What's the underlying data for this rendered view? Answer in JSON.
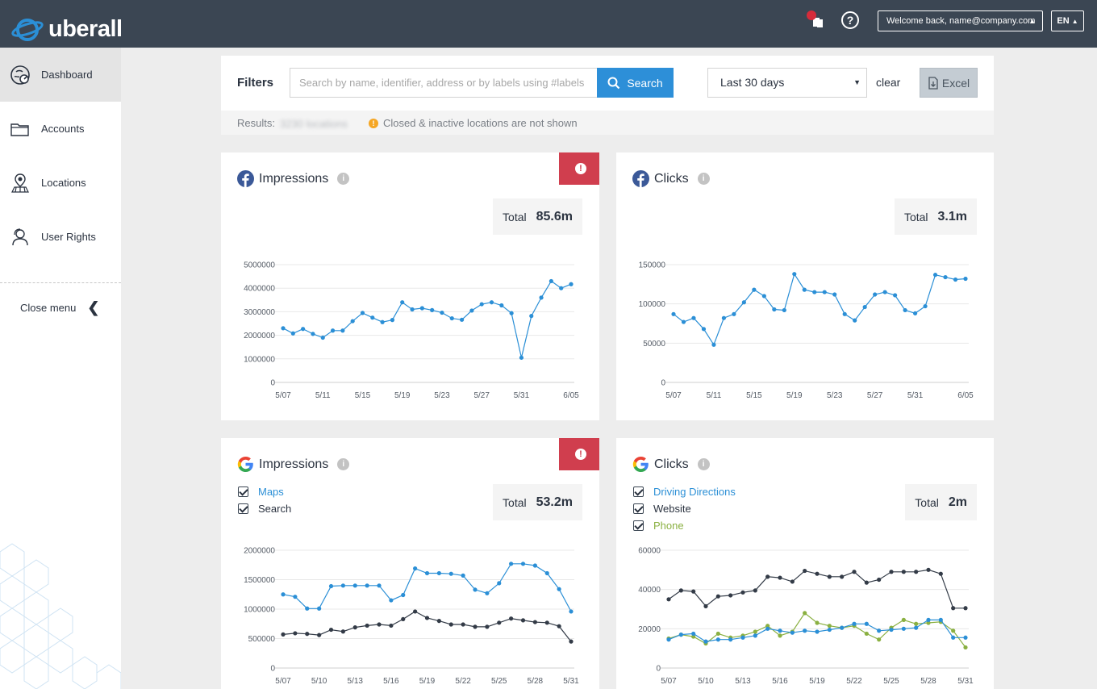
{
  "header": {
    "logo_text": "uberall",
    "help_label": "?",
    "welcome_text": "Welcome back, name@company.com",
    "language": "EN",
    "caret_glyph": "▲"
  },
  "sidebar": {
    "items": [
      {
        "label": "Dashboard",
        "icon": "dashboard-icon",
        "active": true
      },
      {
        "label": "Accounts",
        "icon": "folder-icon",
        "active": false
      },
      {
        "label": "Locations",
        "icon": "map-pin-icon",
        "active": false
      },
      {
        "label": "User Rights",
        "icon": "user-icon",
        "active": false
      }
    ],
    "close_menu": "Close menu",
    "close_glyph": "❮"
  },
  "filters": {
    "label": "Filters",
    "search_placeholder": "Search by name, identifier, address or by labels using #labels",
    "search_button": "Search",
    "date_range": "Last 30 days",
    "clear": "clear",
    "excel": "Excel",
    "results_label": "Results:",
    "results_count": "3230 locations",
    "results_note": "Closed & inactive locations are not shown",
    "warn_glyph": "!"
  },
  "colors": {
    "blue": "#2b8fd6",
    "dark": "#333b47",
    "green": "#8ab041",
    "alert": "#d03e4e",
    "topbar": "#3b4653"
  },
  "cards": {
    "fb_impressions": {
      "title": "Impressions",
      "source": "facebook",
      "total_label": "Total",
      "total_value": "85.6m",
      "alert": true,
      "alert_glyph": "!",
      "info_glyph": "i"
    },
    "fb_clicks": {
      "title": "Clicks",
      "source": "facebook",
      "total_label": "Total",
      "total_value": "3.1m",
      "alert": false,
      "info_glyph": "i"
    },
    "g_impressions": {
      "title": "Impressions",
      "source": "google",
      "legend": [
        {
          "label": "Maps",
          "color": "#2b8fd6"
        },
        {
          "label": "Search",
          "color": "#2b3340"
        }
      ],
      "total_label": "Total",
      "total_value": "53.2m",
      "alert": true,
      "alert_glyph": "!",
      "info_glyph": "i"
    },
    "g_clicks": {
      "title": "Clicks",
      "source": "google",
      "legend": [
        {
          "label": "Driving Directions",
          "color": "#2b8fd6"
        },
        {
          "label": "Website",
          "color": "#2b3340"
        },
        {
          "label": "Phone",
          "color": "#8ab041"
        }
      ],
      "total_label": "Total",
      "total_value": "2m",
      "alert": false,
      "info_glyph": "i"
    }
  },
  "chart_data": [
    {
      "id": "fb_impressions",
      "type": "line",
      "xlim": [
        0,
        30
      ],
      "ylim": [
        0,
        5000000
      ],
      "y_ticks": [
        0,
        1000000,
        2000000,
        3000000,
        4000000,
        5000000
      ],
      "y_tick_labels": [
        "0",
        "1000000",
        "2000000",
        "3000000",
        "4000000",
        "5000000"
      ],
      "x_tick_labels": [
        {
          "i": 0,
          "label": "5/07"
        },
        {
          "i": 4,
          "label": "5/11"
        },
        {
          "i": 8,
          "label": "5/15"
        },
        {
          "i": 12,
          "label": "5/19"
        },
        {
          "i": 16,
          "label": "5/23"
        },
        {
          "i": 20,
          "label": "5/27"
        },
        {
          "i": 24,
          "label": "5/31"
        },
        {
          "i": 29,
          "label": "6/05"
        }
      ],
      "series": [
        {
          "color": "#2b8fd6",
          "values": [
            2300000,
            2080000,
            2270000,
            2060000,
            1900000,
            2200000,
            2200000,
            2600000,
            2950000,
            2750000,
            2560000,
            2650000,
            3400000,
            3100000,
            3150000,
            3070000,
            2960000,
            2720000,
            2660000,
            3050000,
            3320000,
            3400000,
            3270000,
            2940000,
            1050000,
            2820000,
            3600000,
            4300000,
            4000000,
            4170000
          ]
        }
      ],
      "grid": true,
      "legend": "none"
    },
    {
      "id": "fb_clicks",
      "type": "line",
      "xlim": [
        0,
        30
      ],
      "ylim": [
        0,
        150000
      ],
      "y_ticks": [
        0,
        50000,
        100000,
        150000
      ],
      "y_tick_labels": [
        "0",
        "50000",
        "100000",
        "150000"
      ],
      "x_tick_labels": [
        {
          "i": 0,
          "label": "5/07"
        },
        {
          "i": 4,
          "label": "5/11"
        },
        {
          "i": 8,
          "label": "5/15"
        },
        {
          "i": 12,
          "label": "5/19"
        },
        {
          "i": 16,
          "label": "5/23"
        },
        {
          "i": 20,
          "label": "5/27"
        },
        {
          "i": 24,
          "label": "5/31"
        },
        {
          "i": 29,
          "label": "6/05"
        }
      ],
      "series": [
        {
          "color": "#2b8fd6",
          "values": [
            87000,
            77000,
            82000,
            68000,
            48000,
            82000,
            87000,
            102000,
            118000,
            110000,
            93000,
            92000,
            138000,
            118000,
            115000,
            115000,
            112000,
            87000,
            79000,
            96000,
            112000,
            115000,
            111000,
            92000,
            88000,
            97000,
            137000,
            134000,
            131000,
            132000
          ]
        }
      ],
      "grid": true,
      "legend": "none"
    },
    {
      "id": "g_impressions",
      "type": "line",
      "xlim": [
        0,
        25
      ],
      "ylim": [
        0,
        2000000
      ],
      "y_ticks": [
        0,
        500000,
        1000000,
        1500000,
        2000000
      ],
      "y_tick_labels": [
        "0",
        "500000",
        "1000000",
        "1500000",
        "2000000"
      ],
      "x_tick_labels": [
        {
          "i": 0,
          "label": "5/07"
        },
        {
          "i": 3,
          "label": "5/10"
        },
        {
          "i": 6,
          "label": "5/13"
        },
        {
          "i": 9,
          "label": "5/16"
        },
        {
          "i": 12,
          "label": "5/19"
        },
        {
          "i": 15,
          "label": "5/22"
        },
        {
          "i": 18,
          "label": "5/25"
        },
        {
          "i": 21,
          "label": "5/28"
        },
        {
          "i": 24,
          "label": "5/31"
        }
      ],
      "series": [
        {
          "name": "Maps",
          "color": "#2b8fd6",
          "values": [
            1250000,
            1210000,
            1010000,
            1010000,
            1390000,
            1400000,
            1400000,
            1400000,
            1400000,
            1150000,
            1240000,
            1690000,
            1610000,
            1610000,
            1600000,
            1570000,
            1330000,
            1270000,
            1440000,
            1770000,
            1770000,
            1740000,
            1610000,
            1340000,
            960000
          ]
        },
        {
          "name": "Search",
          "color": "#333b47",
          "values": [
            570000,
            590000,
            580000,
            560000,
            650000,
            620000,
            690000,
            720000,
            740000,
            720000,
            830000,
            960000,
            850000,
            800000,
            740000,
            740000,
            700000,
            700000,
            770000,
            840000,
            810000,
            780000,
            770000,
            710000,
            450000
          ]
        }
      ],
      "grid": true,
      "legend": "top-left"
    },
    {
      "id": "g_clicks",
      "type": "line",
      "xlim": [
        0,
        25
      ],
      "ylim": [
        0,
        60000
      ],
      "y_ticks": [
        0,
        20000,
        40000,
        60000
      ],
      "y_tick_labels": [
        "0",
        "20000",
        "40000",
        "60000"
      ],
      "x_tick_labels": [
        {
          "i": 0,
          "label": "5/07"
        },
        {
          "i": 3,
          "label": "5/10"
        },
        {
          "i": 6,
          "label": "5/13"
        },
        {
          "i": 9,
          "label": "5/16"
        },
        {
          "i": 12,
          "label": "5/19"
        },
        {
          "i": 15,
          "label": "5/22"
        },
        {
          "i": 18,
          "label": "5/25"
        },
        {
          "i": 21,
          "label": "5/28"
        },
        {
          "i": 24,
          "label": "5/31"
        }
      ],
      "series": [
        {
          "name": "Website",
          "color": "#333b47",
          "values": [
            35000,
            39500,
            39000,
            31500,
            36500,
            37000,
            38500,
            39500,
            46500,
            46000,
            44000,
            49500,
            48000,
            46500,
            46500,
            49000,
            43500,
            45000,
            49000,
            49000,
            49000,
            50000,
            48000,
            30500,
            30500
          ]
        },
        {
          "name": "Phone",
          "color": "#8ab041",
          "values": [
            15000,
            17000,
            16000,
            12500,
            17500,
            15500,
            16500,
            18500,
            21500,
            16500,
            18500,
            28000,
            23000,
            21500,
            20500,
            21500,
            17500,
            14500,
            20500,
            24500,
            22500,
            23000,
            23500,
            19000,
            10500
          ]
        },
        {
          "name": "Driving Directions",
          "color": "#2b8fd6",
          "values": [
            14500,
            17000,
            17500,
            13500,
            14500,
            14500,
            15500,
            16500,
            20000,
            19000,
            18000,
            19000,
            18500,
            19500,
            20500,
            22500,
            22500,
            19000,
            19500,
            20000,
            20500,
            24500,
            24500,
            15500,
            15500
          ]
        }
      ],
      "grid": true,
      "legend": "top-left"
    }
  ]
}
